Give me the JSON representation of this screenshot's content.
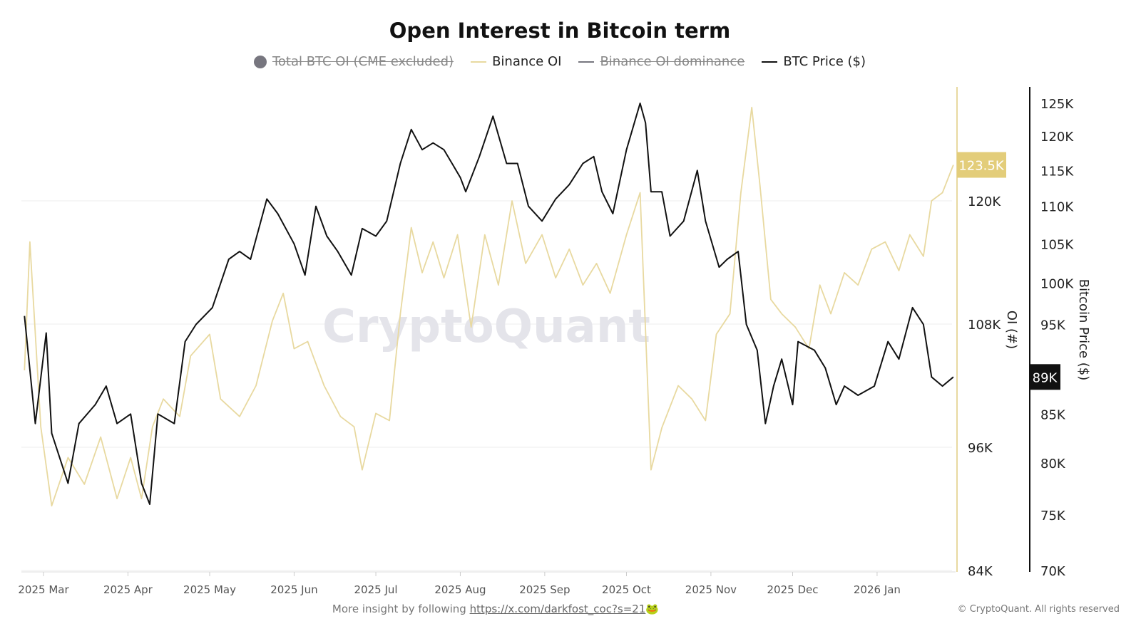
{
  "chart_data": {
    "type": "line",
    "title": "Open Interest in Bitcoin term",
    "legend": [
      {
        "name": "Total BTC OI (CME excluded)",
        "color": "#77767f",
        "hidden": true,
        "marker": "circle"
      },
      {
        "name": "Binance OI",
        "color": "#e8d9a0",
        "hidden": false
      },
      {
        "name": "Binance OI dominance",
        "color": "#77767f",
        "hidden": true
      },
      {
        "name": "BTC Price ($)",
        "color": "#111111",
        "hidden": false
      }
    ],
    "legend_position": "top",
    "x_ticks": [
      "2025 Mar",
      "2025 Apr",
      "2025 May",
      "2025 Jun",
      "2025 Jul",
      "2025 Aug",
      "2025 Sep",
      "2025 Oct",
      "2025 Nov",
      "2025 Dec",
      "2026 Jan"
    ],
    "y_left": {
      "label": "OI (#)",
      "ticks": [
        "84K",
        "96K",
        "108K",
        "120K"
      ],
      "range": [
        84000,
        131000
      ],
      "scale": "linear"
    },
    "y_right": {
      "label": "Bitcoin Price ($)",
      "ticks": [
        "70K",
        "75K",
        "80K",
        "85K",
        "95K",
        "100K",
        "105K",
        "110K",
        "115K",
        "120K",
        "125K"
      ],
      "range": [
        70000,
        125000
      ],
      "scale": "log"
    },
    "last_value_labels": {
      "oi": "123.5K",
      "price": "89K"
    },
    "grid": true,
    "watermark": "CryptoQuant",
    "series": [
      {
        "name": "Binance OI",
        "axis": "left",
        "color": "#e8d9a0",
        "x": [
          "2025-02-22",
          "2025-02-24",
          "2025-02-28",
          "2025-03-04",
          "2025-03-10",
          "2025-03-16",
          "2025-03-22",
          "2025-03-28",
          "2025-04-02",
          "2025-04-06",
          "2025-04-10",
          "2025-04-14",
          "2025-04-20",
          "2025-04-24",
          "2025-05-01",
          "2025-05-05",
          "2025-05-12",
          "2025-05-18",
          "2025-05-24",
          "2025-05-28",
          "2025-06-01",
          "2025-06-06",
          "2025-06-12",
          "2025-06-18",
          "2025-06-23",
          "2025-06-26",
          "2025-07-01",
          "2025-07-06",
          "2025-07-10",
          "2025-07-14",
          "2025-07-18",
          "2025-07-22",
          "2025-07-26",
          "2025-07-31",
          "2025-08-05",
          "2025-08-10",
          "2025-08-15",
          "2025-08-20",
          "2025-08-25",
          "2025-08-31",
          "2025-09-05",
          "2025-09-10",
          "2025-09-15",
          "2025-09-20",
          "2025-09-25",
          "2025-10-01",
          "2025-10-06",
          "2025-10-10",
          "2025-10-14",
          "2025-10-20",
          "2025-10-25",
          "2025-10-30",
          "2025-11-03",
          "2025-11-08",
          "2025-11-12",
          "2025-11-16",
          "2025-11-19",
          "2025-11-23",
          "2025-11-27",
          "2025-12-02",
          "2025-12-07",
          "2025-12-11",
          "2025-12-15",
          "2025-12-20",
          "2025-12-25",
          "2025-12-30",
          "2026-01-04",
          "2026-01-09",
          "2026-01-13",
          "2026-01-18",
          "2026-01-21",
          "2026-01-25",
          "2026-01-29"
        ],
        "values": [
          103500,
          116000,
          98000,
          90300,
          95000,
          92400,
          97000,
          91000,
          95000,
          91000,
          98000,
          100700,
          99000,
          104900,
          107000,
          100700,
          99000,
          102000,
          108300,
          111000,
          105600,
          106300,
          102000,
          99000,
          98000,
          93800,
          99300,
          98600,
          109000,
          117400,
          113000,
          116000,
          112500,
          116700,
          107700,
          116700,
          111800,
          120000,
          113900,
          116700,
          112500,
          115300,
          111800,
          113900,
          111000,
          116700,
          120800,
          93800,
          97900,
          102000,
          100700,
          98600,
          107000,
          109000,
          120800,
          129100,
          121500,
          110400,
          109000,
          107700,
          105600,
          111800,
          109000,
          113000,
          111800,
          115300,
          116000,
          113200,
          116700,
          114600,
          120000,
          120800,
          123500
        ]
      },
      {
        "name": "BTC Price ($)",
        "axis": "right",
        "color": "#111111",
        "x": [
          "2025-02-22",
          "2025-02-26",
          "2025-03-02",
          "2025-03-04",
          "2025-03-10",
          "2025-03-14",
          "2025-03-20",
          "2025-03-24",
          "2025-03-28",
          "2025-04-02",
          "2025-04-06",
          "2025-04-09",
          "2025-04-12",
          "2025-04-18",
          "2025-04-22",
          "2025-04-26",
          "2025-05-02",
          "2025-05-08",
          "2025-05-12",
          "2025-05-16",
          "2025-05-22",
          "2025-05-26",
          "2025-06-01",
          "2025-06-05",
          "2025-06-09",
          "2025-06-13",
          "2025-06-17",
          "2025-06-22",
          "2025-06-26",
          "2025-07-01",
          "2025-07-05",
          "2025-07-10",
          "2025-07-14",
          "2025-07-18",
          "2025-07-22",
          "2025-07-26",
          "2025-08-01",
          "2025-08-03",
          "2025-08-08",
          "2025-08-13",
          "2025-08-18",
          "2025-08-22",
          "2025-08-26",
          "2025-08-31",
          "2025-09-05",
          "2025-09-10",
          "2025-09-15",
          "2025-09-19",
          "2025-09-22",
          "2025-09-26",
          "2025-10-01",
          "2025-10-06",
          "2025-10-08",
          "2025-10-10",
          "2025-10-14",
          "2025-10-17",
          "2025-10-22",
          "2025-10-27",
          "2025-10-30",
          "2025-11-04",
          "2025-11-07",
          "2025-11-11",
          "2025-11-14",
          "2025-11-18",
          "2025-11-21",
          "2025-11-24",
          "2025-11-27",
          "2025-12-01",
          "2025-12-03",
          "2025-12-09",
          "2025-12-13",
          "2025-12-17",
          "2025-12-20",
          "2025-12-25",
          "2025-12-31",
          "2026-01-05",
          "2026-01-09",
          "2026-01-14",
          "2026-01-18",
          "2026-01-21",
          "2026-01-25",
          "2026-01-29"
        ],
        "values": [
          96000,
          84000,
          94000,
          83000,
          78000,
          84000,
          86000,
          88000,
          84000,
          85000,
          78000,
          76000,
          85000,
          84000,
          93000,
          95000,
          97000,
          103000,
          104000,
          103000,
          111000,
          109000,
          105000,
          101000,
          110000,
          106000,
          104000,
          101000,
          107000,
          106000,
          108000,
          116000,
          121000,
          118000,
          119000,
          118000,
          114000,
          112000,
          117000,
          123000,
          116000,
          116000,
          110000,
          108000,
          111000,
          113000,
          116000,
          117000,
          112000,
          109000,
          118000,
          125000,
          122000,
          112000,
          112000,
          106000,
          108000,
          115000,
          108000,
          102000,
          103000,
          104000,
          95000,
          92000,
          84000,
          88000,
          91000,
          86000,
          93000,
          92000,
          90000,
          86000,
          88000,
          87000,
          88000,
          93000,
          91000,
          97000,
          95000,
          89000,
          88000,
          89000
        ]
      }
    ]
  },
  "footer": {
    "text": "More insight by following ",
    "link": "https://x.com/darkfost_coc?s=21",
    "emoji": "🐸",
    "copyright": "© CryptoQuant. All rights reserved"
  }
}
